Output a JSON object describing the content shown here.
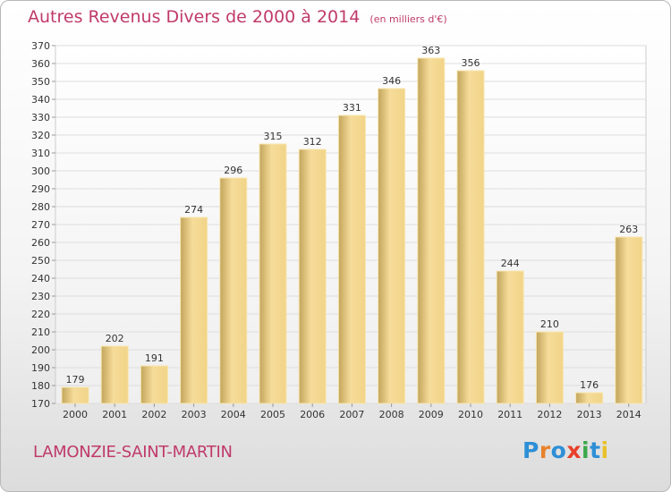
{
  "header": {
    "title": "Autres Revenus Divers de 2000 à 2014",
    "subtitle": "(en milliers d'€)"
  },
  "footer": {
    "place": "LAMONZIE-SAINT-MARTIN",
    "logo_text": "Proxiti",
    "logo_colors": [
      "#2e8fd6",
      "#e8822a",
      "#2e8fd6",
      "#e8402a",
      "#3aa84a",
      "#2e8fd6",
      "#e8c12a"
    ]
  },
  "colors": {
    "title": "#c03a6a",
    "bar_light": "#f6dc9a",
    "bar_dark": "#c2a55c",
    "grid": "#dddddd"
  },
  "chart_data": {
    "type": "bar",
    "title": "Autres Revenus Divers de 2000 à 2014",
    "subtitle": "(en milliers d'€)",
    "categories": [
      "2000",
      "2001",
      "2002",
      "2003",
      "2004",
      "2005",
      "2006",
      "2007",
      "2008",
      "2009",
      "2010",
      "2011",
      "2012",
      "2013",
      "2014"
    ],
    "values": [
      179,
      202,
      191,
      274,
      296,
      315,
      312,
      331,
      346,
      363,
      356,
      244,
      210,
      176,
      263
    ],
    "ylim": [
      170,
      370
    ],
    "ytick_step": 10,
    "grid": true,
    "xlabel": "",
    "ylabel": ""
  }
}
